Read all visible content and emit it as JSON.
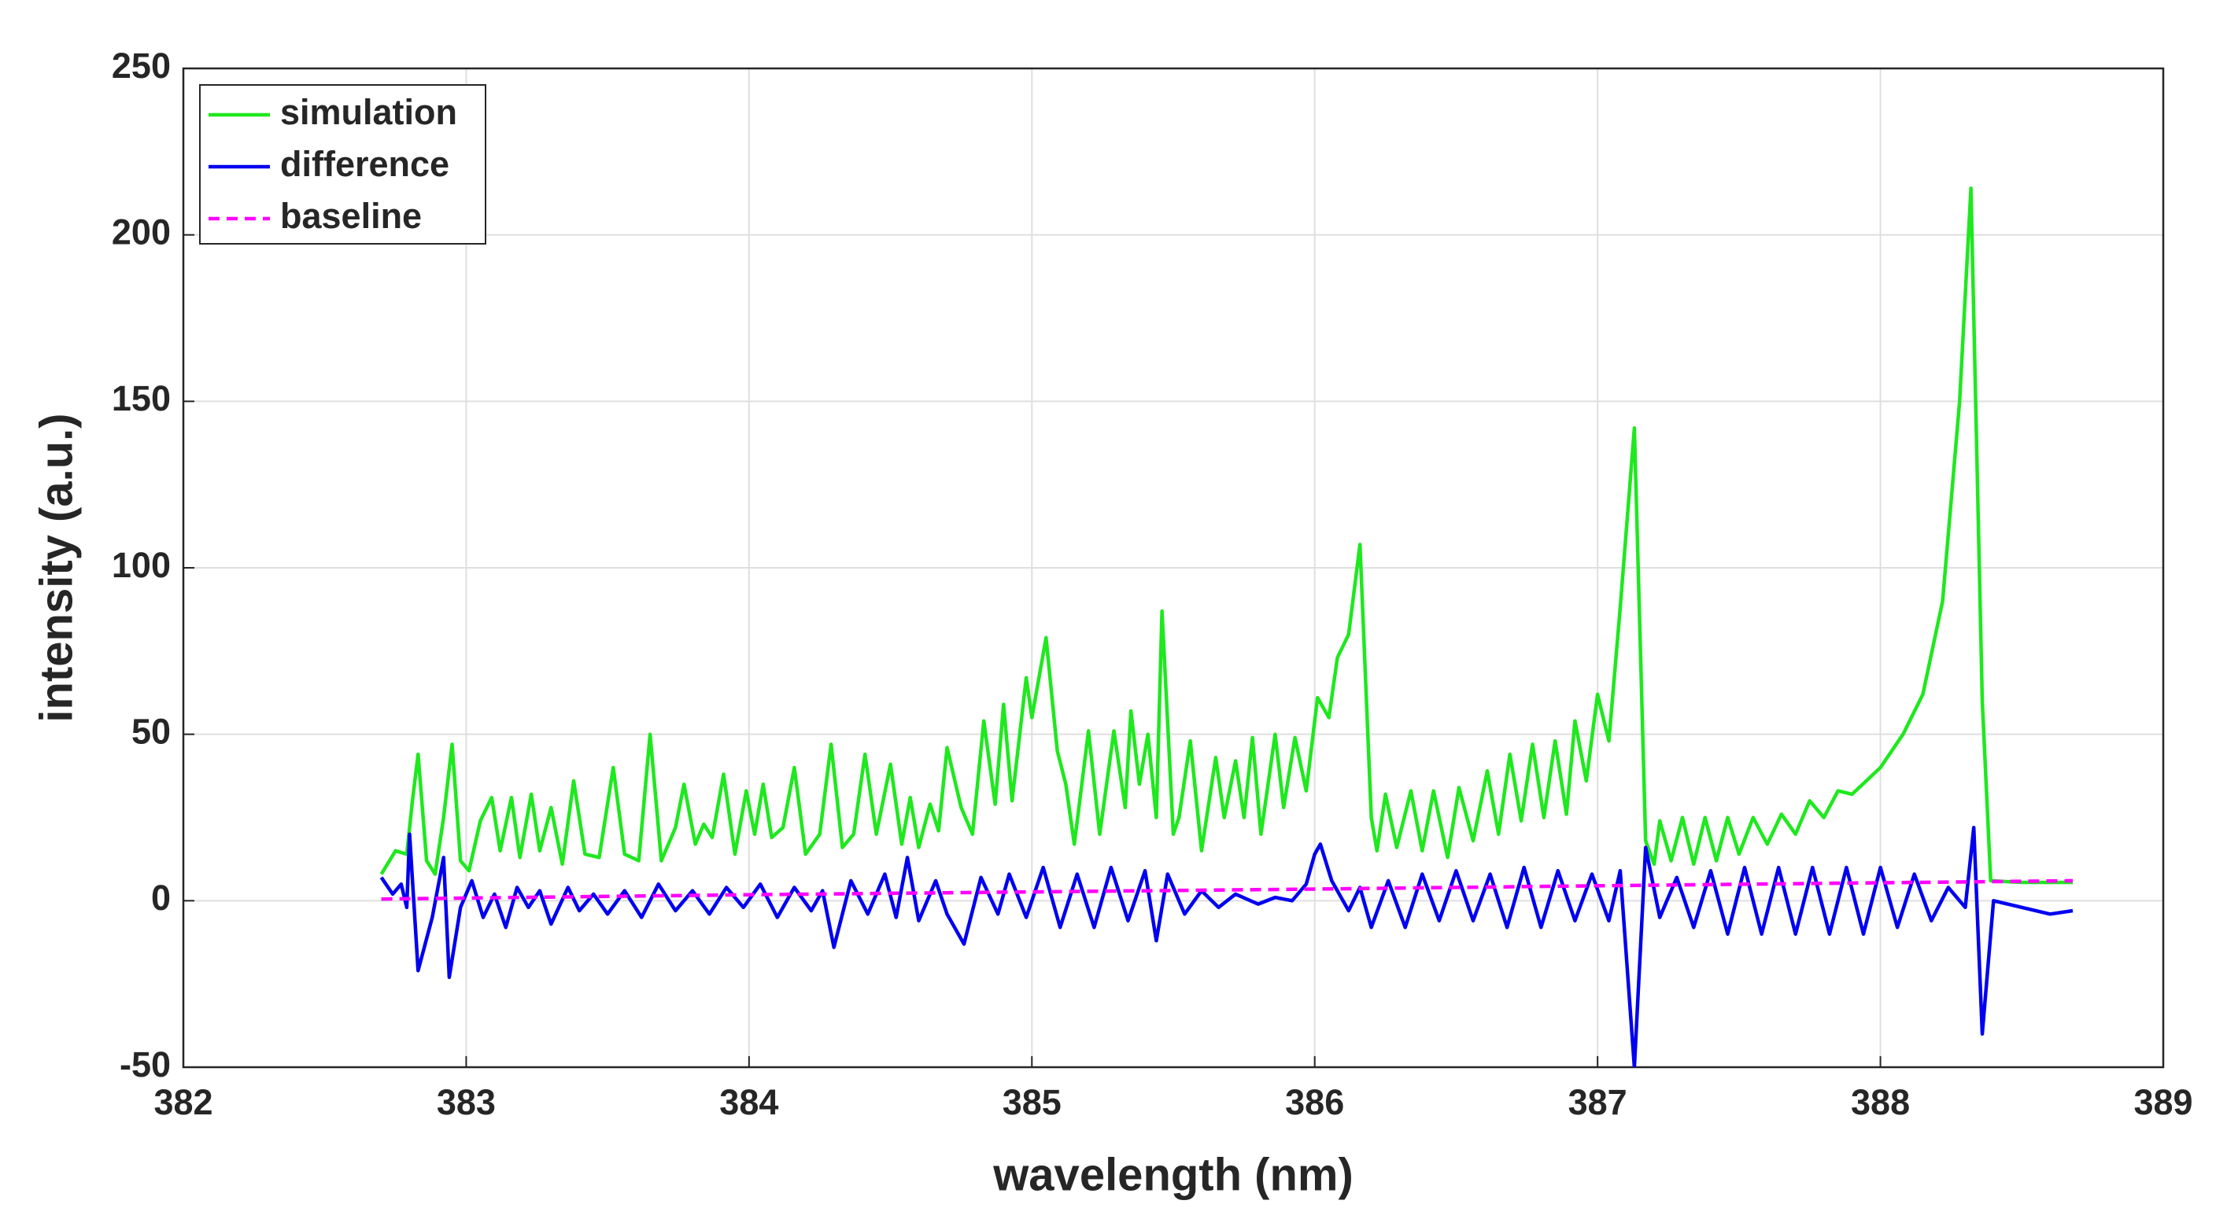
{
  "chart_data": {
    "type": "line",
    "xlabel": "wavelength (nm)",
    "ylabel": "intensity (a.u.)",
    "xlim": [
      382,
      389
    ],
    "xticks": [
      382,
      383,
      384,
      385,
      386,
      387,
      388,
      389
    ],
    "ylim": [
      -50,
      250
    ],
    "yticks": [
      -50,
      0,
      50,
      100,
      150,
      200,
      250
    ],
    "grid": true,
    "legend": "upper left",
    "series": [
      {
        "name": "simulation",
        "color": "#1ee81e",
        "line_style": "solid",
        "x": [
          382.7,
          382.75,
          382.79,
          382.81,
          382.83,
          382.86,
          382.89,
          382.92,
          382.95,
          382.98,
          383.01,
          383.05,
          383.09,
          383.12,
          383.16,
          383.19,
          383.23,
          383.26,
          383.3,
          383.34,
          383.38,
          383.42,
          383.47,
          383.52,
          383.56,
          383.61,
          383.65,
          383.69,
          383.74,
          383.77,
          383.81,
          383.84,
          383.87,
          383.91,
          383.95,
          383.99,
          384.02,
          384.05,
          384.08,
          384.12,
          384.16,
          384.2,
          384.25,
          384.29,
          384.33,
          384.37,
          384.41,
          384.45,
          384.5,
          384.54,
          384.57,
          384.6,
          384.64,
          384.67,
          384.7,
          384.75,
          384.79,
          384.83,
          384.87,
          384.9,
          384.93,
          384.98,
          385.0,
          385.05,
          385.09,
          385.12,
          385.15,
          385.2,
          385.24,
          385.29,
          385.33,
          385.35,
          385.38,
          385.41,
          385.44,
          385.46,
          385.5,
          385.52,
          385.56,
          385.6,
          385.65,
          385.68,
          385.72,
          385.75,
          385.78,
          385.81,
          385.86,
          385.89,
          385.93,
          385.97,
          386.01,
          386.05,
          386.08,
          386.12,
          386.16,
          386.2,
          386.22,
          386.25,
          386.29,
          386.34,
          386.38,
          386.42,
          386.47,
          386.51,
          386.56,
          386.61,
          386.65,
          386.69,
          386.73,
          386.77,
          386.81,
          386.85,
          386.89,
          386.92,
          386.96,
          387.0,
          387.04,
          387.08,
          387.13,
          387.17,
          387.2,
          387.22,
          387.26,
          387.3,
          387.34,
          387.38,
          387.42,
          387.46,
          387.5,
          387.55,
          387.6,
          387.65,
          387.7,
          387.75,
          387.8,
          387.85,
          387.9,
          388.0,
          388.08,
          388.15,
          388.22,
          388.28,
          388.32,
          388.36,
          388.39,
          388.5,
          388.68
        ],
        "values": [
          8,
          15,
          14,
          30,
          44,
          12,
          8,
          25,
          47,
          12,
          9,
          24,
          31,
          15,
          31,
          13,
          32,
          15,
          28,
          11,
          36,
          14,
          13,
          40,
          14,
          12,
          50,
          12,
          22,
          35,
          17,
          23,
          19,
          38,
          14,
          33,
          20,
          35,
          19,
          22,
          40,
          14,
          20,
          47,
          16,
          20,
          44,
          20,
          41,
          17,
          31,
          16,
          29,
          21,
          46,
          28,
          20,
          54,
          29,
          59,
          30,
          67,
          55,
          79,
          45,
          35,
          17,
          51,
          20,
          51,
          28,
          57,
          35,
          50,
          25,
          87,
          20,
          25,
          48,
          15,
          43,
          25,
          42,
          25,
          49,
          20,
          50,
          28,
          49,
          33,
          61,
          55,
          73,
          80,
          107,
          25,
          15,
          32,
          16,
          33,
          15,
          33,
          13,
          34,
          18,
          39,
          20,
          44,
          24,
          47,
          25,
          48,
          26,
          54,
          36,
          62,
          48,
          88,
          142,
          18,
          11,
          24,
          12,
          25,
          11,
          25,
          12,
          25,
          14,
          25,
          17,
          26,
          20,
          30,
          25,
          33,
          32,
          40,
          50,
          62,
          90,
          150,
          214,
          60,
          6,
          5.5,
          5.5
        ]
      },
      {
        "name": "difference",
        "color": "#0000f0",
        "line_style": "solid",
        "x": [
          382.7,
          382.74,
          382.77,
          382.79,
          382.8,
          382.83,
          382.88,
          382.92,
          382.94,
          382.98,
          383.02,
          383.06,
          383.1,
          383.14,
          383.18,
          383.22,
          383.26,
          383.3,
          383.36,
          383.4,
          383.45,
          383.5,
          383.56,
          383.62,
          383.68,
          383.74,
          383.8,
          383.86,
          383.92,
          383.98,
          384.04,
          384.1,
          384.16,
          384.22,
          384.26,
          384.3,
          384.36,
          384.42,
          384.48,
          384.52,
          384.56,
          384.6,
          384.66,
          384.7,
          384.76,
          384.82,
          384.88,
          384.92,
          384.98,
          385.04,
          385.1,
          385.16,
          385.22,
          385.28,
          385.34,
          385.4,
          385.44,
          385.48,
          385.54,
          385.6,
          385.66,
          385.72,
          385.8,
          385.86,
          385.92,
          385.97,
          386.0,
          386.02,
          386.06,
          386.12,
          386.16,
          386.2,
          386.26,
          386.32,
          386.38,
          386.44,
          386.5,
          386.56,
          386.62,
          386.68,
          386.74,
          386.8,
          386.86,
          386.92,
          386.98,
          387.04,
          387.08,
          387.13,
          387.17,
          387.22,
          387.28,
          387.34,
          387.4,
          387.46,
          387.52,
          387.58,
          387.64,
          387.7,
          387.76,
          387.82,
          387.88,
          387.94,
          388.0,
          388.06,
          388.12,
          388.18,
          388.24,
          388.3,
          388.33,
          388.36,
          388.4,
          388.5,
          388.6,
          388.68
        ],
        "values": [
          7,
          2,
          5,
          -2,
          20,
          -21,
          -5,
          13,
          -23,
          -2,
          6,
          -5,
          2,
          -8,
          4,
          -2,
          3,
          -7,
          4,
          -3,
          2,
          -4,
          3,
          -5,
          5,
          -3,
          3,
          -4,
          4,
          -2,
          5,
          -5,
          4,
          -3,
          3,
          -14,
          6,
          -4,
          8,
          -5,
          13,
          -6,
          6,
          -4,
          -13,
          7,
          -4,
          8,
          -5,
          10,
          -8,
          8,
          -8,
          10,
          -6,
          9,
          -12,
          8,
          -4,
          3,
          -2,
          2,
          -1,
          1,
          0,
          5,
          14,
          17,
          6,
          -3,
          4,
          -8,
          6,
          -8,
          8,
          -6,
          9,
          -6,
          8,
          -8,
          10,
          -8,
          9,
          -6,
          8,
          -6,
          9,
          -50,
          16,
          -5,
          7,
          -8,
          9,
          -10,
          10,
          -10,
          10,
          -10,
          10,
          -10,
          10,
          -10,
          10,
          -8,
          8,
          -6,
          4,
          -2,
          22,
          -40,
          0,
          -2,
          -4,
          -3
        ]
      },
      {
        "name": "baseline",
        "color": "#ff00ff",
        "line_style": "dashed",
        "x": [
          382.7,
          384.0,
          386.0,
          387.0,
          388.68
        ],
        "values": [
          0.5,
          1.8,
          3.5,
          4.5,
          6
        ]
      }
    ]
  }
}
